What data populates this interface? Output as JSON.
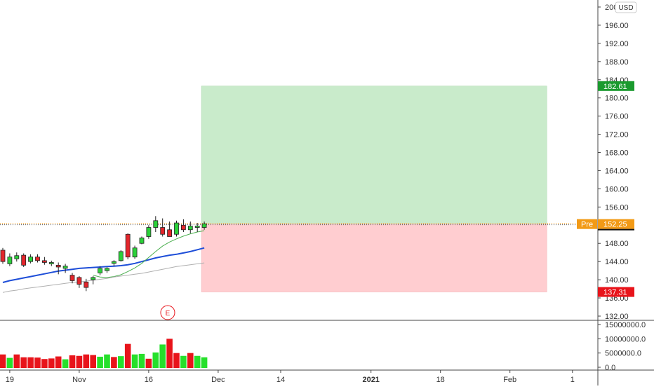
{
  "currency": "USD",
  "earnings_marker": "E",
  "colors": {
    "up": "#26e02b",
    "down": "#e8141b",
    "candle_up": "#2bd13a",
    "candle_down": "#e3262c",
    "ma_blue": "#1e4ed8",
    "ma_green": "#4caf50",
    "ma_gray": "#b0b0b0",
    "profit_zone": "#c9ebcb",
    "loss_zone": "#ffcdd0",
    "target_tag": "#1a9a2e",
    "stop_tag": "#e8141b",
    "pre_tag": "#f29a16",
    "axis_text": "#333333"
  },
  "price_axis": {
    "ticks": [
      {
        "v": 132,
        "label": "132.00"
      },
      {
        "v": 136,
        "label": "136.00"
      },
      {
        "v": 140,
        "label": "140.00"
      },
      {
        "v": 144,
        "label": "144.00"
      },
      {
        "v": 148,
        "label": "148.00"
      },
      {
        "v": 152,
        "label": "152.00"
      },
      {
        "v": 156,
        "label": "156.00"
      },
      {
        "v": 160,
        "label": "160.00"
      },
      {
        "v": 164,
        "label": "164.00"
      },
      {
        "v": 168,
        "label": "168.00"
      },
      {
        "v": 172,
        "label": "172.00"
      },
      {
        "v": 176,
        "label": "176.00"
      },
      {
        "v": 180,
        "label": "180.00"
      },
      {
        "v": 184,
        "label": "184.00"
      },
      {
        "v": 188,
        "label": "188.00"
      },
      {
        "v": 192,
        "label": "192.00"
      },
      {
        "v": 196,
        "label": "196.00"
      },
      {
        "v": 200,
        "label": "200.00"
      }
    ]
  },
  "volume_axis": {
    "ticks": [
      {
        "v": 0,
        "label": "0.0"
      },
      {
        "v": 5000000,
        "label": "5000000.0"
      },
      {
        "v": 10000000,
        "label": "10000000.0"
      },
      {
        "v": 15000000,
        "label": "15000000.0"
      }
    ]
  },
  "time_axis": {
    "labels": [
      {
        "i": 1,
        "label": "19",
        "bold": false
      },
      {
        "i": 11,
        "label": "Nov",
        "bold": false
      },
      {
        "i": 21,
        "label": "16",
        "bold": false
      },
      {
        "i": 31,
        "label": "Dec",
        "bold": false
      },
      {
        "i": 40,
        "label": "14",
        "bold": false
      },
      {
        "i": 53,
        "label": "2021",
        "bold": true
      },
      {
        "i": 63,
        "label": "18",
        "bold": false
      },
      {
        "i": 73,
        "label": "Feb",
        "bold": false
      },
      {
        "i": 82,
        "label": "1",
        "bold": false
      }
    ]
  },
  "position": {
    "entry_label": "Pre",
    "entry_value": "152.25",
    "target_value": "182.61",
    "stop_value": "137.31",
    "entry": 152.25,
    "target": 182.61,
    "stop": 137.31,
    "start_index": 29,
    "end_index": 78
  },
  "chart_data": {
    "type": "candlestick",
    "y_range": [
      131,
      201
    ],
    "volume_range": [
      0,
      15000000
    ],
    "candles": [
      {
        "i": 0,
        "o": 146.5,
        "h": 147.0,
        "l": 143.5,
        "c": 144.0
      },
      {
        "i": 1,
        "o": 143.5,
        "h": 145.8,
        "l": 143.0,
        "c": 145.0
      },
      {
        "i": 2,
        "o": 144.6,
        "h": 146.0,
        "l": 144.0,
        "c": 145.3
      },
      {
        "i": 3,
        "o": 145.4,
        "h": 145.8,
        "l": 142.8,
        "c": 143.2
      },
      {
        "i": 4,
        "o": 144.0,
        "h": 145.6,
        "l": 143.6,
        "c": 145.0
      },
      {
        "i": 5,
        "o": 145.0,
        "h": 145.6,
        "l": 143.8,
        "c": 144.2
      },
      {
        "i": 6,
        "o": 144.2,
        "h": 145.0,
        "l": 143.3,
        "c": 143.8
      },
      {
        "i": 7,
        "o": 143.5,
        "h": 144.2,
        "l": 143.0,
        "c": 143.8
      },
      {
        "i": 8,
        "o": 143.2,
        "h": 143.8,
        "l": 141.2,
        "c": 142.8
      },
      {
        "i": 9,
        "o": 142.5,
        "h": 143.5,
        "l": 141.5,
        "c": 143.0
      },
      {
        "i": 10,
        "o": 141.0,
        "h": 141.5,
        "l": 139.2,
        "c": 139.8
      },
      {
        "i": 11,
        "o": 140.5,
        "h": 140.8,
        "l": 138.2,
        "c": 139.0
      },
      {
        "i": 12,
        "o": 139.5,
        "h": 140.2,
        "l": 137.5,
        "c": 138.3
      },
      {
        "i": 13,
        "o": 140.0,
        "h": 140.8,
        "l": 139.0,
        "c": 140.5
      },
      {
        "i": 14,
        "o": 141.5,
        "h": 143.0,
        "l": 141.0,
        "c": 142.5
      },
      {
        "i": 15,
        "o": 142.0,
        "h": 142.8,
        "l": 141.5,
        "c": 142.5
      },
      {
        "i": 16,
        "o": 143.6,
        "h": 144.3,
        "l": 143.0,
        "c": 144.0
      },
      {
        "i": 17,
        "o": 144.2,
        "h": 146.5,
        "l": 144.0,
        "c": 146.2
      },
      {
        "i": 18,
        "o": 150.0,
        "h": 150.2,
        "l": 144.5,
        "c": 145.0
      },
      {
        "i": 19,
        "o": 145.0,
        "h": 147.5,
        "l": 144.6,
        "c": 147.0
      },
      {
        "i": 20,
        "o": 148.0,
        "h": 149.5,
        "l": 147.8,
        "c": 149.2
      },
      {
        "i": 21,
        "o": 149.5,
        "h": 152.0,
        "l": 149.0,
        "c": 151.5
      },
      {
        "i": 22,
        "o": 151.5,
        "h": 154.0,
        "l": 150.5,
        "c": 153.0
      },
      {
        "i": 23,
        "o": 151.5,
        "h": 153.5,
        "l": 149.5,
        "c": 150.0
      },
      {
        "i": 24,
        "o": 151.0,
        "h": 152.8,
        "l": 149.5,
        "c": 149.5
      },
      {
        "i": 25,
        "o": 150.0,
        "h": 153.0,
        "l": 149.5,
        "c": 152.5
      },
      {
        "i": 26,
        "o": 152.0,
        "h": 153.3,
        "l": 150.5,
        "c": 151.0
      },
      {
        "i": 27,
        "o": 151.0,
        "h": 152.8,
        "l": 150.2,
        "c": 151.8
      },
      {
        "i": 28,
        "o": 151.5,
        "h": 152.5,
        "l": 150.5,
        "c": 151.8
      },
      {
        "i": 29,
        "o": 151.5,
        "h": 152.8,
        "l": 151.0,
        "c": 152.3
      }
    ],
    "volume": [
      {
        "i": 0,
        "v": 4500000,
        "up": false
      },
      {
        "i": 1,
        "v": 3300000,
        "up": true
      },
      {
        "i": 2,
        "v": 4500000,
        "up": false
      },
      {
        "i": 3,
        "v": 3500000,
        "up": false
      },
      {
        "i": 4,
        "v": 3500000,
        "up": false
      },
      {
        "i": 5,
        "v": 3400000,
        "up": false
      },
      {
        "i": 6,
        "v": 2900000,
        "up": false
      },
      {
        "i": 7,
        "v": 3100000,
        "up": false
      },
      {
        "i": 8,
        "v": 3800000,
        "up": false
      },
      {
        "i": 9,
        "v": 2800000,
        "up": true
      },
      {
        "i": 10,
        "v": 4200000,
        "up": false
      },
      {
        "i": 11,
        "v": 4000000,
        "up": false
      },
      {
        "i": 12,
        "v": 4500000,
        "up": false
      },
      {
        "i": 13,
        "v": 4300000,
        "up": false
      },
      {
        "i": 14,
        "v": 3700000,
        "up": true
      },
      {
        "i": 15,
        "v": 4500000,
        "up": true
      },
      {
        "i": 16,
        "v": 3600000,
        "up": false
      },
      {
        "i": 17,
        "v": 3900000,
        "up": true
      },
      {
        "i": 18,
        "v": 8200000,
        "up": false
      },
      {
        "i": 19,
        "v": 4500000,
        "up": true
      },
      {
        "i": 20,
        "v": 4700000,
        "up": true
      },
      {
        "i": 21,
        "v": 3000000,
        "up": false
      },
      {
        "i": 22,
        "v": 5200000,
        "up": true
      },
      {
        "i": 23,
        "v": 8000000,
        "up": true
      },
      {
        "i": 24,
        "v": 10000000,
        "up": false
      },
      {
        "i": 25,
        "v": 5000000,
        "up": false
      },
      {
        "i": 26,
        "v": 4000000,
        "up": true
      },
      {
        "i": 27,
        "v": 5000000,
        "up": false
      },
      {
        "i": 28,
        "v": 4000000,
        "up": true
      },
      {
        "i": 29,
        "v": 3500000,
        "up": true
      }
    ],
    "moving_averages": [
      {
        "color_key": "ma_blue",
        "width": 2.0,
        "values": [
          139.4,
          139.8,
          140.1,
          140.4,
          140.7,
          141.0,
          141.3,
          141.6,
          141.9,
          142.1,
          142.3,
          142.5,
          142.6,
          142.7,
          142.8,
          142.9,
          143.0,
          143.1,
          143.3,
          143.6,
          144.0,
          144.4,
          144.8,
          145.1,
          145.4,
          145.6,
          145.9,
          146.2,
          146.6,
          147.0
        ]
      },
      {
        "color_key": "ma_green",
        "width": 1.0,
        "values": [
          null,
          null,
          null,
          null,
          null,
          null,
          null,
          null,
          null,
          null,
          null,
          null,
          null,
          141.0,
          140.6,
          140.5,
          140.7,
          141.1,
          141.8,
          142.6,
          143.6,
          144.9,
          146.2,
          147.4,
          148.3,
          149.0,
          149.6,
          150.1,
          150.5,
          150.8
        ]
      },
      {
        "color_key": "ma_gray",
        "width": 1.0,
        "values": [
          137.2,
          137.5,
          137.7,
          138.0,
          138.2,
          138.4,
          138.6,
          138.8,
          139.0,
          139.2,
          139.4,
          139.5,
          139.7,
          139.9,
          140.1,
          140.3,
          140.6,
          140.8,
          141.0,
          141.2,
          141.4,
          141.7,
          142.0,
          142.3,
          142.6,
          142.9,
          143.1,
          143.3,
          143.5,
          143.7
        ]
      }
    ]
  }
}
